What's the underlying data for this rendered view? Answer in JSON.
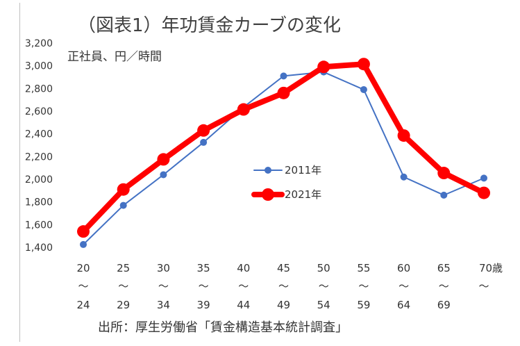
{
  "chart_data": {
    "type": "line",
    "title": "（図表1）年功賃金カーブの変化",
    "unit_label": "正社員、円／時間",
    "source": "出所：厚生労働省「賃金構造基本統計調査」",
    "categories": [
      {
        "top": "20",
        "mid": "～",
        "bottom": "24"
      },
      {
        "top": "25",
        "mid": "～",
        "bottom": "29"
      },
      {
        "top": "30",
        "mid": "～",
        "bottom": "34"
      },
      {
        "top": "35",
        "mid": "～",
        "bottom": "39"
      },
      {
        "top": "40",
        "mid": "～",
        "bottom": "44"
      },
      {
        "top": "45",
        "mid": "～",
        "bottom": "49"
      },
      {
        "top": "50",
        "mid": "～",
        "bottom": "54"
      },
      {
        "top": "55",
        "mid": "～",
        "bottom": "59"
      },
      {
        "top": "60",
        "mid": "～",
        "bottom": "64"
      },
      {
        "top": "65",
        "mid": "～",
        "bottom": "69"
      },
      {
        "top": "70歳",
        "mid": "～",
        "bottom": ""
      }
    ],
    "y_ticks": [
      "1,400",
      "1,600",
      "1,800",
      "2,000",
      "2,200",
      "2,400",
      "2,600",
      "2,800",
      "3,000",
      "3,200"
    ],
    "ylim": [
      1400,
      3200
    ],
    "grid": false,
    "legend_position": "center-right",
    "series": [
      {
        "name": "2011年",
        "color": "#4472C4",
        "values": [
          1425,
          1770,
          2040,
          2325,
          2635,
          2910,
          2945,
          2790,
          2020,
          1860,
          2010
        ]
      },
      {
        "name": "2021年",
        "color": "#FF0000",
        "values": [
          1540,
          1910,
          2175,
          2430,
          2615,
          2760,
          2990,
          3015,
          2385,
          2055,
          1880
        ]
      }
    ]
  }
}
